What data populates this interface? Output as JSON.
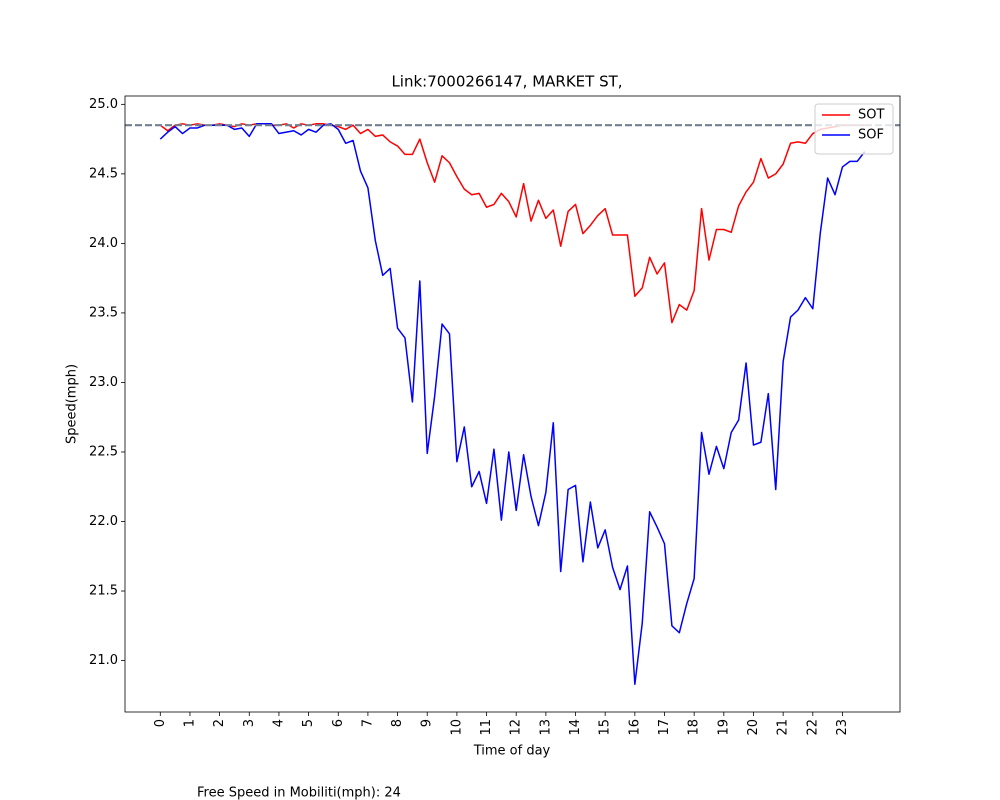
{
  "chart_data": {
    "type": "line",
    "title": "Link:7000266147, MARKET ST,",
    "x_label": "Time of day",
    "y_label": "Speed(mph)",
    "annotation": "Free Speed in Mobiliti(mph): 24",
    "x": [
      0,
      0.25,
      0.5,
      0.75,
      1,
      1.25,
      1.5,
      1.75,
      2,
      2.25,
      2.5,
      2.75,
      3,
      3.25,
      3.5,
      3.75,
      4,
      4.25,
      4.5,
      4.75,
      5,
      5.25,
      5.5,
      5.75,
      6,
      6.25,
      6.5,
      6.75,
      7,
      7.25,
      7.5,
      7.75,
      8,
      8.25,
      8.5,
      8.75,
      9,
      9.25,
      9.5,
      9.75,
      10,
      10.25,
      10.5,
      10.75,
      11,
      11.25,
      11.5,
      11.75,
      12,
      12.25,
      12.5,
      12.75,
      13,
      13.25,
      13.5,
      13.75,
      14,
      14.25,
      14.5,
      14.75,
      15,
      15.25,
      15.5,
      15.75,
      16,
      16.25,
      16.5,
      16.75,
      17,
      17.25,
      17.5,
      17.75,
      18,
      18.25,
      18.5,
      18.75,
      19,
      19.25,
      19.5,
      19.75,
      20,
      20.25,
      20.5,
      20.75,
      21,
      21.25,
      21.5,
      21.75,
      22,
      22.25,
      22.5,
      22.75,
      23,
      23.25,
      23.5,
      23.75
    ],
    "series": [
      {
        "name": "SOT",
        "color": "#ff0000",
        "values": [
          24.85,
          24.81,
          24.85,
          24.86,
          24.85,
          24.86,
          24.85,
          24.85,
          24.86,
          24.85,
          24.84,
          24.86,
          24.85,
          24.86,
          24.86,
          24.85,
          24.85,
          24.86,
          24.83,
          24.86,
          24.85,
          24.86,
          24.86,
          24.85,
          24.84,
          24.82,
          24.85,
          24.79,
          24.82,
          24.77,
          24.78,
          24.73,
          24.7,
          24.64,
          24.64,
          24.75,
          24.58,
          24.44,
          24.63,
          24.58,
          24.48,
          24.39,
          24.35,
          24.36,
          24.26,
          24.28,
          24.36,
          24.3,
          24.19,
          24.43,
          24.16,
          24.31,
          24.18,
          24.24,
          23.98,
          24.23,
          24.28,
          24.07,
          24.13,
          24.2,
          24.25,
          24.06,
          24.06,
          24.06,
          23.62,
          23.68,
          23.9,
          23.78,
          23.86,
          23.43,
          23.56,
          23.52,
          23.66,
          24.25,
          23.88,
          24.1,
          24.1,
          24.08,
          24.27,
          24.37,
          24.44,
          24.61,
          24.47,
          24.5,
          24.57,
          24.72,
          24.73,
          24.72,
          24.79,
          24.82,
          24.83,
          24.84,
          24.85,
          24.85,
          24.85,
          24.85
        ]
      },
      {
        "name": "SOF",
        "color": "#0000ff",
        "values": [
          24.75,
          24.8,
          24.84,
          24.79,
          24.83,
          24.83,
          24.85,
          24.85,
          24.85,
          24.85,
          24.82,
          24.83,
          24.77,
          24.86,
          24.86,
          24.86,
          24.79,
          24.8,
          24.81,
          24.78,
          24.82,
          24.8,
          24.85,
          24.86,
          24.82,
          24.72,
          24.74,
          24.52,
          24.4,
          24.02,
          23.77,
          23.82,
          23.39,
          23.32,
          22.86,
          23.73,
          22.49,
          22.9,
          23.42,
          23.35,
          22.43,
          22.68,
          22.25,
          22.36,
          22.13,
          22.52,
          22.01,
          22.5,
          22.08,
          22.48,
          22.18,
          21.97,
          22.21,
          22.71,
          21.64,
          22.23,
          22.26,
          21.71,
          22.14,
          21.81,
          21.94,
          21.67,
          21.51,
          21.68,
          20.83,
          21.27,
          22.07,
          21.96,
          21.84,
          21.25,
          21.2,
          21.41,
          21.59,
          22.64,
          22.34,
          22.54,
          22.38,
          22.64,
          22.73,
          23.14,
          22.55,
          22.57,
          22.92,
          22.23,
          23.15,
          23.47,
          23.52,
          23.61,
          23.53,
          24.07,
          24.47,
          24.35,
          24.55,
          24.59,
          24.59,
          24.66
        ]
      }
    ],
    "hline": {
      "value": 24.85,
      "color": "#708090",
      "dashed": true
    },
    "xlim": [
      -1.19,
      24.94
    ],
    "ylim": [
      20.63,
      25.06
    ],
    "xticks": [
      0,
      1,
      2,
      3,
      4,
      5,
      6,
      7,
      8,
      9,
      10,
      11,
      12,
      13,
      14,
      15,
      16,
      17,
      18,
      19,
      20,
      21,
      22,
      23
    ],
    "yticks": [
      {
        "value": 21,
        "label": "21.0"
      },
      21.5,
      {
        "value": 22,
        "label": "22.0"
      },
      22.5,
      {
        "value": 23,
        "label": "23.0"
      },
      23.5,
      {
        "value": 24,
        "label": "24.0"
      },
      24.5,
      {
        "value": 25,
        "label": "25.0"
      }
    ],
    "xtick_rotation": 90,
    "legend": "upper right"
  }
}
